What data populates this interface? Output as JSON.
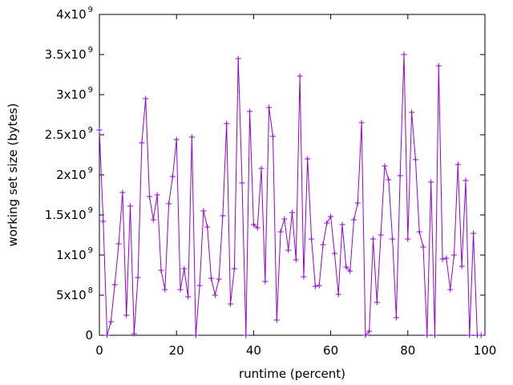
{
  "chart_data": {
    "type": "line",
    "title": "",
    "xlabel": "runtime (percent)",
    "ylabel": "working set size (bytes)",
    "xlim": [
      0,
      100
    ],
    "ylim": [
      0,
      4000000000
    ],
    "grid": false,
    "legend": "none",
    "marker": "plus",
    "line_color": "#9400d3",
    "x_ticks": [
      {
        "value": 0,
        "label": "0"
      },
      {
        "value": 20,
        "label": "20"
      },
      {
        "value": 40,
        "label": "40"
      },
      {
        "value": 60,
        "label": "60"
      },
      {
        "value": 80,
        "label": "80"
      },
      {
        "value": 100,
        "label": "100"
      }
    ],
    "y_ticks": [
      {
        "value": 0,
        "mantissa": "0",
        "exp": ""
      },
      {
        "value": 500000000,
        "mantissa": "5x10",
        "exp": "8"
      },
      {
        "value": 1000000000,
        "mantissa": "1x10",
        "exp": "9"
      },
      {
        "value": 1500000000,
        "mantissa": "1.5x10",
        "exp": "9"
      },
      {
        "value": 2000000000,
        "mantissa": "2x10",
        "exp": "9"
      },
      {
        "value": 2500000000,
        "mantissa": "2.5x10",
        "exp": "9"
      },
      {
        "value": 3000000000,
        "mantissa": "3x10",
        "exp": "9"
      },
      {
        "value": 3500000000,
        "mantissa": "3.5x10",
        "exp": "9"
      },
      {
        "value": 4000000000,
        "mantissa": "4x10",
        "exp": "9"
      }
    ],
    "x": [
      0,
      1,
      2,
      3,
      4,
      5,
      6,
      7,
      8,
      9,
      10,
      11,
      12,
      13,
      14,
      15,
      16,
      17,
      18,
      19,
      20,
      21,
      22,
      23,
      24,
      25,
      26,
      27,
      28,
      29,
      30,
      31,
      32,
      33,
      34,
      35,
      36,
      37,
      38,
      39,
      40,
      41,
      42,
      43,
      44,
      45,
      46,
      47,
      48,
      49,
      50,
      51,
      52,
      53,
      54,
      55,
      56,
      57,
      58,
      59,
      60,
      61,
      62,
      63,
      64,
      65,
      66,
      67,
      68,
      69,
      70,
      71,
      72,
      73,
      74,
      75,
      76,
      77,
      78,
      79,
      80,
      81,
      82,
      83,
      84,
      85,
      86,
      87,
      88,
      89,
      90,
      91,
      92,
      93,
      94,
      95,
      96,
      97,
      98,
      99
    ],
    "values": [
      2560000000,
      1420000000,
      0,
      170000000,
      630000000,
      1140000000,
      1780000000,
      250000000,
      1610000000,
      20000000,
      720000000,
      2400000000,
      2950000000,
      1730000000,
      1440000000,
      1750000000,
      810000000,
      570000000,
      1640000000,
      1980000000,
      2440000000,
      570000000,
      830000000,
      480000000,
      2470000000,
      0,
      620000000,
      1550000000,
      1350000000,
      710000000,
      500000000,
      700000000,
      1490000000,
      2640000000,
      390000000,
      830000000,
      3450000000,
      1900000000,
      0,
      2790000000,
      1380000000,
      1340000000,
      2080000000,
      670000000,
      2840000000,
      2480000000,
      190000000,
      1290000000,
      1450000000,
      1060000000,
      1530000000,
      940000000,
      3230000000,
      730000000,
      2200000000,
      1200000000,
      610000000,
      620000000,
      1130000000,
      1400000000,
      1480000000,
      1020000000,
      510000000,
      1380000000,
      850000000,
      800000000,
      1440000000,
      1650000000,
      2650000000,
      0,
      50000000,
      1200000000,
      410000000,
      1250000000,
      2110000000,
      1940000000,
      1200000000,
      220000000,
      1990000000,
      3500000000,
      1200000000,
      2780000000,
      2190000000,
      1290000000,
      1100000000,
      0,
      1910000000,
      0,
      3360000000,
      950000000,
      960000000,
      570000000,
      1000000000,
      2130000000,
      860000000,
      1930000000,
      0,
      1270000000,
      0,
      0
    ]
  }
}
